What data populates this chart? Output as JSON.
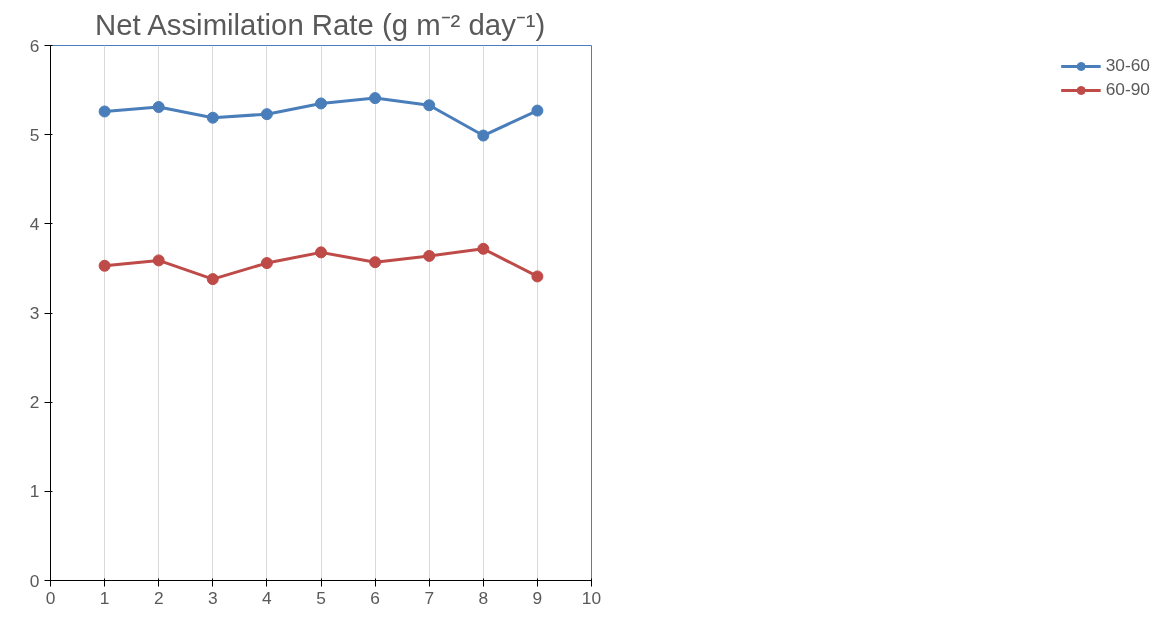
{
  "chart_data": {
    "type": "line",
    "title": "Net Assimilation Rate (g m⁻² day⁻¹)",
    "x": [
      1,
      2,
      3,
      4,
      5,
      6,
      7,
      8,
      9
    ],
    "series": [
      {
        "name": "30-60",
        "color": "#4a7ebb",
        "values": [
          5.26,
          5.31,
          5.19,
          5.23,
          5.35,
          5.41,
          5.33,
          4.99,
          5.27
        ]
      },
      {
        "name": "60-90",
        "color": "#be4b48",
        "values": [
          3.53,
          3.59,
          3.38,
          3.56,
          3.68,
          3.57,
          3.64,
          3.72,
          3.41
        ]
      }
    ],
    "xlim": [
      0,
      10
    ],
    "xticks": [
      0,
      1,
      2,
      3,
      4,
      5,
      6,
      7,
      8,
      9,
      10
    ],
    "ylim": [
      0,
      6
    ],
    "yticks": [
      0,
      1,
      2,
      3,
      4,
      5,
      6
    ],
    "grid": "x",
    "legend": "right",
    "marker": "circle",
    "line_style": "solid"
  }
}
